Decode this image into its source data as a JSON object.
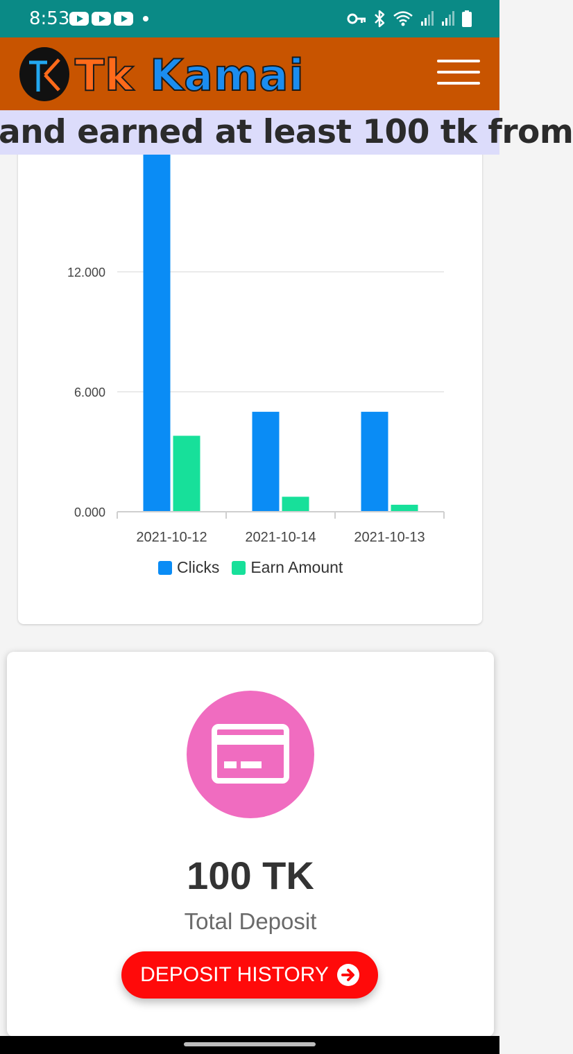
{
  "status_bar": {
    "time": "8:53",
    "icons": [
      "youtube-notification-icon",
      "youtube-notification-icon",
      "youtube-notification-icon",
      "notification-dot-icon",
      "vpn-key-icon",
      "bluetooth-icon",
      "wifi-icon",
      "signal-icon",
      "signal-icon",
      "battery-icon"
    ]
  },
  "header": {
    "logo_part1": "Tk",
    "logo_part2": "Kamai",
    "menu_icon": "hamburger-menu-icon",
    "colors": {
      "bar": "#c85400",
      "logo_tk": "#ff6a1a",
      "logo_kamai": "#1b8df0"
    }
  },
  "ticker": {
    "text": "and earned at least 100 tk from"
  },
  "chart_data": {
    "type": "bar",
    "categories": [
      "2021-10-12",
      "2021-10-14",
      "2021-10-13"
    ],
    "series": [
      {
        "name": "Clicks",
        "color": "#0a8cf5",
        "values": [
          18,
          5,
          5
        ]
      },
      {
        "name": "Earn Amount",
        "color": "#17e09a",
        "values": [
          3.8,
          0.75,
          0.35
        ]
      }
    ],
    "y_ticks": [
      "0.000",
      "6.000",
      "12.000"
    ],
    "ylim": [
      0,
      18
    ],
    "grid": true,
    "legend_position": "bottom"
  },
  "deposit": {
    "icon": "credit-card-icon",
    "amount": "100 TK",
    "label": "Total Deposit",
    "button_label": "DEPOSIT HISTORY",
    "button_icon": "arrow-right-circle-icon",
    "colors": {
      "icon_bg": "#f06cc0",
      "button": "#ff0a0a"
    }
  }
}
